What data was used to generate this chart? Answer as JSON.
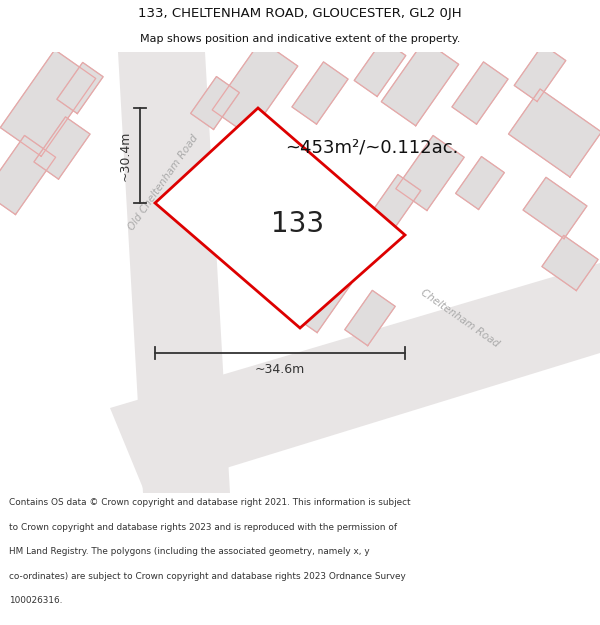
{
  "title_line1": "133, CHELTENHAM ROAD, GLOUCESTER, GL2 0JH",
  "title_line2": "Map shows position and indicative extent of the property.",
  "area_text": "~453m²/~0.112ac.",
  "number_label": "133",
  "dim_width": "~34.6m",
  "dim_height": "~30.4m",
  "map_bg": "#f7f5f5",
  "road_color": "#e8e5e5",
  "building_fill": "#e0dddd",
  "building_edge": "#c8c5c5",
  "building_red_outline": "#e8a8a8",
  "red_outline_color": "#dd0000",
  "prop_fill": "#ffffff",
  "dim_line_color": "#333333",
  "street_label_color": "#aaaaaa",
  "number_color": "#222222",
  "area_color": "#111111",
  "footnote_color": "#333333",
  "title_color": "#111111",
  "street_label1": "Old Cheltenham Road",
  "street_label2": "Cheltenham Road",
  "footnote_lines": [
    "Contains OS data © Crown copyright and database right 2021. This information is subject",
    "to Crown copyright and database rights 2023 and is reproduced with the permission of",
    "HM Land Registry. The polygons (including the associated geometry, namely x, y",
    "co-ordinates) are subject to Crown copyright and database rights 2023 Ordnance Survey",
    "100026316."
  ]
}
